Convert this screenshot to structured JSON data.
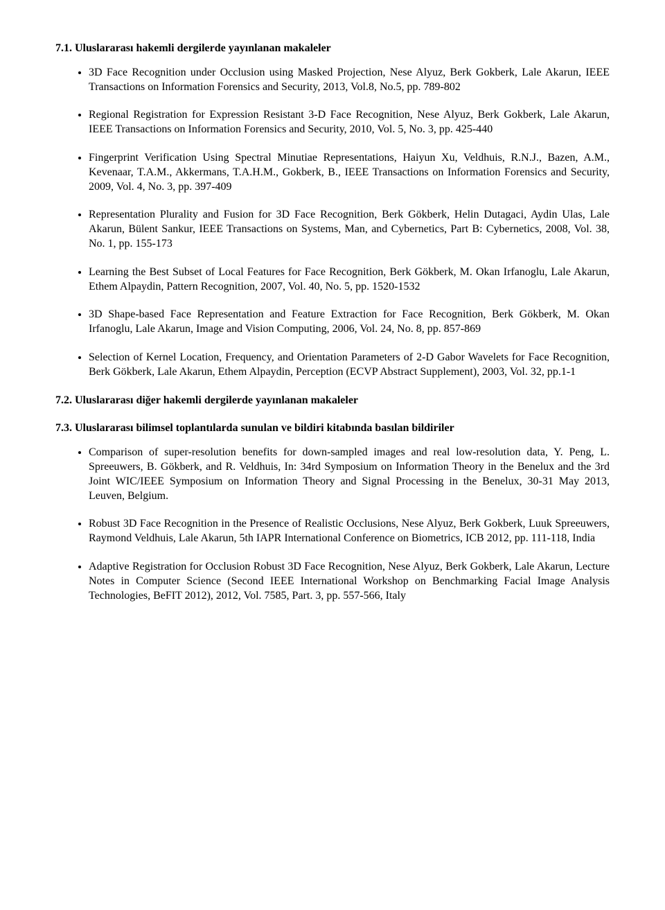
{
  "section71": {
    "title": "7.1. Uluslararası hakemli dergilerde yayınlanan makaleler",
    "items": [
      "3D Face Recognition under Occlusion using Masked Projection, Nese Alyuz, Berk Gokberk, Lale Akarun, IEEE Transactions on Information Forensics and Security, 2013, Vol.8, No.5, pp. 789-802",
      "Regional Registration for Expression Resistant 3-D Face Recognition, Nese Alyuz, Berk Gokberk, Lale Akarun, IEEE Transactions on Information Forensics and Security, 2010, Vol. 5, No. 3, pp. 425-440",
      "Fingerprint Verification Using Spectral Minutiae Representations, Haiyun Xu, Veldhuis, R.N.J., Bazen, A.M., Kevenaar, T.A.M., Akkermans, T.A.H.M., Gokberk, B., IEEE Transactions on Information Forensics and Security, 2009, Vol. 4, No. 3, pp. 397-409",
      "Representation Plurality and Fusion for 3D Face Recognition, Berk Gökberk, Helin Dutagaci, Aydin Ulas, Lale Akarun, Bülent Sankur, IEEE Transactions on Systems, Man, and Cybernetics, Part B: Cybernetics, 2008, Vol. 38, No. 1, pp. 155-173",
      "Learning the Best Subset of Local Features for Face Recognition, Berk Gökberk, M. Okan Irfanoglu, Lale Akarun, Ethem Alpaydin, Pattern Recognition, 2007, Vol. 40, No. 5, pp. 1520-1532",
      "3D Shape-based Face Representation and Feature Extraction for Face Recognition, Berk Gökberk, M. Okan Irfanoglu, Lale Akarun, Image and Vision Computing, 2006, Vol. 24, No. 8, pp. 857-869",
      "Selection of Kernel Location, Frequency, and Orientation Parameters of 2-D Gabor Wavelets for Face Recognition, Berk Gökberk, Lale Akarun, Ethem Alpaydin, Perception (ECVP Abstract Supplement), 2003, Vol. 32, pp.1-1"
    ]
  },
  "section72": {
    "title": "7.2. Uluslararası diğer hakemli dergilerde yayınlanan makaleler"
  },
  "section73": {
    "title": "7.3. Uluslararası bilimsel toplantılarda sunulan ve bildiri kitabında basılan bildiriler",
    "items": [
      "Comparison of super-resolution benefits for down-sampled images and real low-resolution data, Y. Peng, L. Spreeuwers, B. Gökberk, and R. Veldhuis, In: 34rd Symposium on Information Theory in the Benelux and the 3rd Joint WIC/IEEE Symposium on Information Theory and Signal Processing in the Benelux, 30-31 May 2013, Leuven, Belgium.",
      "Robust 3D Face Recognition in the Presence of Realistic Occlusions, Nese Alyuz, Berk Gokberk, Luuk Spreeuwers, Raymond Veldhuis, Lale Akarun, 5th IAPR International Conference on Biometrics, ICB 2012, pp. 111-118, India",
      "Adaptive Registration for Occlusion Robust 3D Face Recognition, Nese Alyuz, Berk Gokberk, Lale Akarun, Lecture Notes in Computer Science (Second IEEE International Workshop on Benchmarking Facial Image Analysis Technologies, BeFIT 2012), 2012, Vol. 7585, Part. 3, pp. 557-566, Italy"
    ]
  }
}
